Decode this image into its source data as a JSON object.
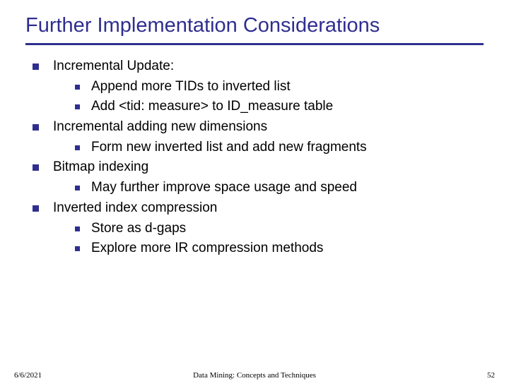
{
  "title": "Further Implementation Considerations",
  "colors": {
    "heading": "#2f2e8f",
    "bullet": "#2f2e8f",
    "text": "#000000",
    "background": "#ffffff"
  },
  "typography": {
    "title_fontsize": 29,
    "body_fontsize": 19,
    "footer_fontsize": 11
  },
  "items": [
    {
      "text": "Incremental Update:",
      "children": [
        {
          "text": "Append more TIDs to inverted list"
        },
        {
          "text": "Add <tid: measure> to ID_measure table"
        }
      ]
    },
    {
      "text": "Incremental adding new dimensions",
      "children": [
        {
          "text": "Form new inverted list and add new fragments"
        }
      ]
    },
    {
      "text": "Bitmap indexing",
      "children": [
        {
          "text": "May further improve space usage and speed"
        }
      ]
    },
    {
      "text": "Inverted index compression",
      "children": [
        {
          "text": "Store as d-gaps"
        },
        {
          "text": "Explore more IR compression methods"
        }
      ]
    }
  ],
  "footer": {
    "date": "6/6/2021",
    "center": "Data Mining: Concepts and Techniques",
    "page": "52"
  }
}
